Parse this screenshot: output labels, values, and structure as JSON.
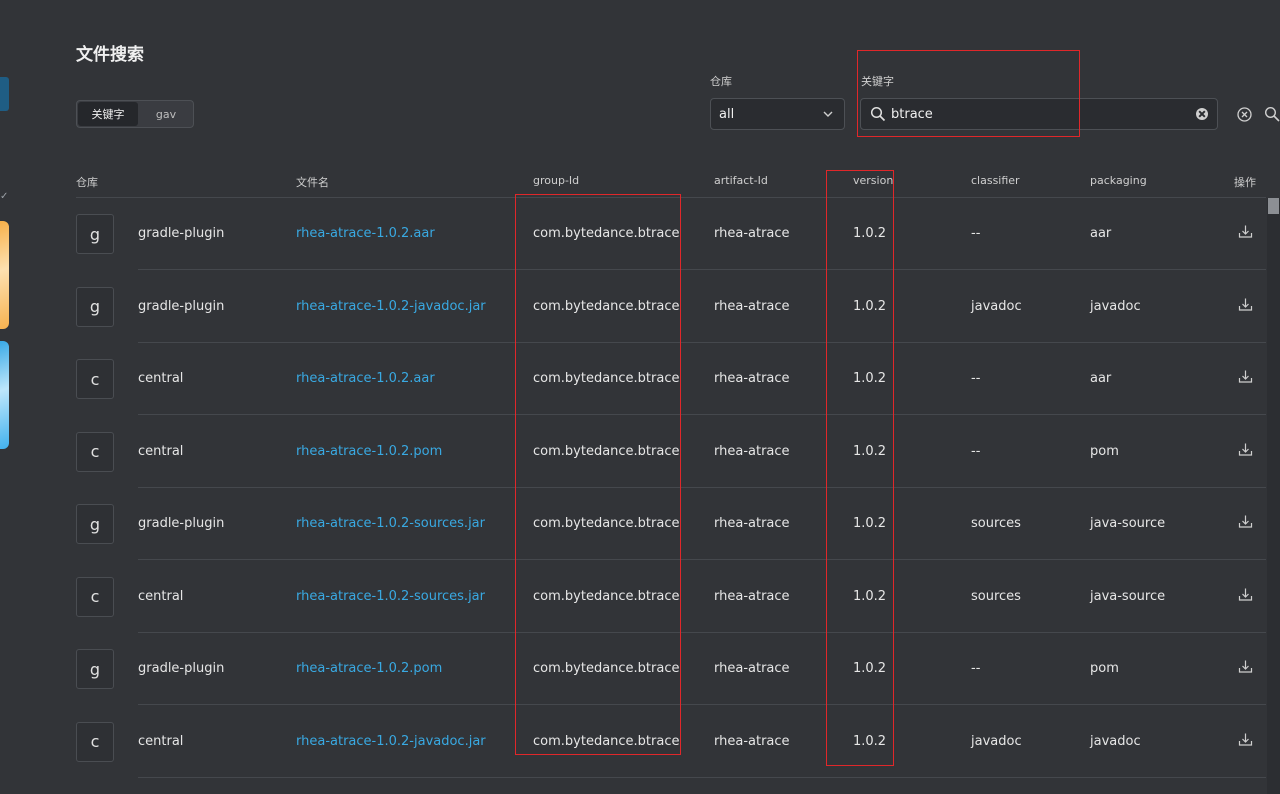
{
  "page": {
    "title": "文件搜索"
  },
  "mode_toggle": {
    "options": [
      "关键字",
      "gav"
    ],
    "selected": "关键字"
  },
  "filters": {
    "repo_label": "仓库",
    "repo_value": "all",
    "keyword_label": "关键字",
    "keyword_value": "btrace"
  },
  "table": {
    "headers": [
      "仓库",
      "文件名",
      "group-Id",
      "artifact-Id",
      "version",
      "classifier",
      "packaging",
      "操作"
    ],
    "rows": [
      {
        "badge": "g",
        "repo": "gradle-plugin",
        "file": "rhea-atrace-1.0.2.aar",
        "group": "com.bytedance.btrace",
        "artifact": "rhea-atrace",
        "version": "1.0.2",
        "classifier": "--",
        "packaging": "aar"
      },
      {
        "badge": "g",
        "repo": "gradle-plugin",
        "file": "rhea-atrace-1.0.2-javadoc.jar",
        "group": "com.bytedance.btrace",
        "artifact": "rhea-atrace",
        "version": "1.0.2",
        "classifier": "javadoc",
        "packaging": "javadoc"
      },
      {
        "badge": "c",
        "repo": "central",
        "file": "rhea-atrace-1.0.2.aar",
        "group": "com.bytedance.btrace",
        "artifact": "rhea-atrace",
        "version": "1.0.2",
        "classifier": "--",
        "packaging": "aar"
      },
      {
        "badge": "c",
        "repo": "central",
        "file": "rhea-atrace-1.0.2.pom",
        "group": "com.bytedance.btrace",
        "artifact": "rhea-atrace",
        "version": "1.0.2",
        "classifier": "--",
        "packaging": "pom"
      },
      {
        "badge": "g",
        "repo": "gradle-plugin",
        "file": "rhea-atrace-1.0.2-sources.jar",
        "group": "com.bytedance.btrace",
        "artifact": "rhea-atrace",
        "version": "1.0.2",
        "classifier": "sources",
        "packaging": "java-source"
      },
      {
        "badge": "c",
        "repo": "central",
        "file": "rhea-atrace-1.0.2-sources.jar",
        "group": "com.bytedance.btrace",
        "artifact": "rhea-atrace",
        "version": "1.0.2",
        "classifier": "sources",
        "packaging": "java-source"
      },
      {
        "badge": "g",
        "repo": "gradle-plugin",
        "file": "rhea-atrace-1.0.2.pom",
        "group": "com.bytedance.btrace",
        "artifact": "rhea-atrace",
        "version": "1.0.2",
        "classifier": "--",
        "packaging": "pom"
      },
      {
        "badge": "c",
        "repo": "central",
        "file": "rhea-atrace-1.0.2-javadoc.jar",
        "group": "com.bytedance.btrace",
        "artifact": "rhea-atrace",
        "version": "1.0.2",
        "classifier": "javadoc",
        "packaging": "javadoc"
      }
    ]
  },
  "colors": {
    "background": "#323438",
    "link": "#39a9e2",
    "highlight_box": "#e0272a"
  },
  "icons": [
    "search-icon",
    "clear-icon",
    "chevron-down-icon",
    "close-circle-icon",
    "download-icon"
  ]
}
